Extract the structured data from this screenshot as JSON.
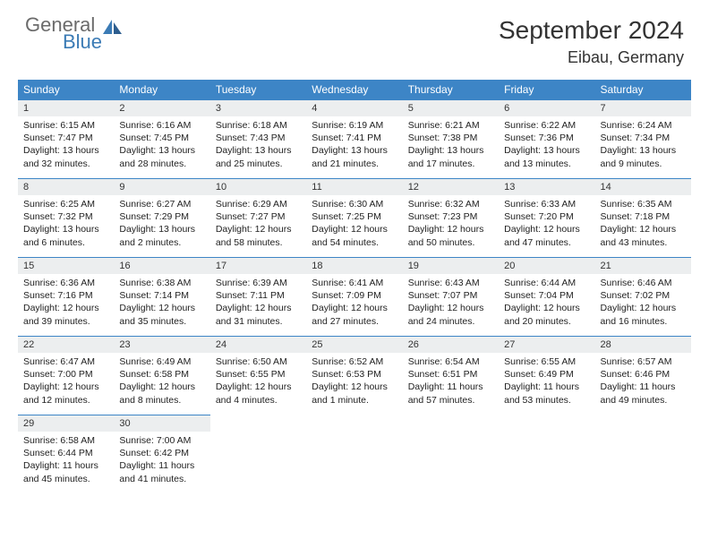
{
  "brand": {
    "part1": "General",
    "part2": "Blue"
  },
  "title": "September 2024",
  "location": "Eibau, Germany",
  "colors": {
    "header_bg": "#3d85c6",
    "daynum_bg": "#eceeef",
    "rule": "#3d85c6",
    "logo_gray": "#6b6b6b",
    "logo_blue": "#3b7bb5"
  },
  "weekdays": [
    "Sunday",
    "Monday",
    "Tuesday",
    "Wednesday",
    "Thursday",
    "Friday",
    "Saturday"
  ],
  "days": [
    {
      "n": 1,
      "sunrise": "6:15 AM",
      "sunset": "7:47 PM",
      "daylight": "13 hours and 32 minutes."
    },
    {
      "n": 2,
      "sunrise": "6:16 AM",
      "sunset": "7:45 PM",
      "daylight": "13 hours and 28 minutes."
    },
    {
      "n": 3,
      "sunrise": "6:18 AM",
      "sunset": "7:43 PM",
      "daylight": "13 hours and 25 minutes."
    },
    {
      "n": 4,
      "sunrise": "6:19 AM",
      "sunset": "7:41 PM",
      "daylight": "13 hours and 21 minutes."
    },
    {
      "n": 5,
      "sunrise": "6:21 AM",
      "sunset": "7:38 PM",
      "daylight": "13 hours and 17 minutes."
    },
    {
      "n": 6,
      "sunrise": "6:22 AM",
      "sunset": "7:36 PM",
      "daylight": "13 hours and 13 minutes."
    },
    {
      "n": 7,
      "sunrise": "6:24 AM",
      "sunset": "7:34 PM",
      "daylight": "13 hours and 9 minutes."
    },
    {
      "n": 8,
      "sunrise": "6:25 AM",
      "sunset": "7:32 PM",
      "daylight": "13 hours and 6 minutes."
    },
    {
      "n": 9,
      "sunrise": "6:27 AM",
      "sunset": "7:29 PM",
      "daylight": "13 hours and 2 minutes."
    },
    {
      "n": 10,
      "sunrise": "6:29 AM",
      "sunset": "7:27 PM",
      "daylight": "12 hours and 58 minutes."
    },
    {
      "n": 11,
      "sunrise": "6:30 AM",
      "sunset": "7:25 PM",
      "daylight": "12 hours and 54 minutes."
    },
    {
      "n": 12,
      "sunrise": "6:32 AM",
      "sunset": "7:23 PM",
      "daylight": "12 hours and 50 minutes."
    },
    {
      "n": 13,
      "sunrise": "6:33 AM",
      "sunset": "7:20 PM",
      "daylight": "12 hours and 47 minutes."
    },
    {
      "n": 14,
      "sunrise": "6:35 AM",
      "sunset": "7:18 PM",
      "daylight": "12 hours and 43 minutes."
    },
    {
      "n": 15,
      "sunrise": "6:36 AM",
      "sunset": "7:16 PM",
      "daylight": "12 hours and 39 minutes."
    },
    {
      "n": 16,
      "sunrise": "6:38 AM",
      "sunset": "7:14 PM",
      "daylight": "12 hours and 35 minutes."
    },
    {
      "n": 17,
      "sunrise": "6:39 AM",
      "sunset": "7:11 PM",
      "daylight": "12 hours and 31 minutes."
    },
    {
      "n": 18,
      "sunrise": "6:41 AM",
      "sunset": "7:09 PM",
      "daylight": "12 hours and 27 minutes."
    },
    {
      "n": 19,
      "sunrise": "6:43 AM",
      "sunset": "7:07 PM",
      "daylight": "12 hours and 24 minutes."
    },
    {
      "n": 20,
      "sunrise": "6:44 AM",
      "sunset": "7:04 PM",
      "daylight": "12 hours and 20 minutes."
    },
    {
      "n": 21,
      "sunrise": "6:46 AM",
      "sunset": "7:02 PM",
      "daylight": "12 hours and 16 minutes."
    },
    {
      "n": 22,
      "sunrise": "6:47 AM",
      "sunset": "7:00 PM",
      "daylight": "12 hours and 12 minutes."
    },
    {
      "n": 23,
      "sunrise": "6:49 AM",
      "sunset": "6:58 PM",
      "daylight": "12 hours and 8 minutes."
    },
    {
      "n": 24,
      "sunrise": "6:50 AM",
      "sunset": "6:55 PM",
      "daylight": "12 hours and 4 minutes."
    },
    {
      "n": 25,
      "sunrise": "6:52 AM",
      "sunset": "6:53 PM",
      "daylight": "12 hours and 1 minute."
    },
    {
      "n": 26,
      "sunrise": "6:54 AM",
      "sunset": "6:51 PM",
      "daylight": "11 hours and 57 minutes."
    },
    {
      "n": 27,
      "sunrise": "6:55 AM",
      "sunset": "6:49 PM",
      "daylight": "11 hours and 53 minutes."
    },
    {
      "n": 28,
      "sunrise": "6:57 AM",
      "sunset": "6:46 PM",
      "daylight": "11 hours and 49 minutes."
    },
    {
      "n": 29,
      "sunrise": "6:58 AM",
      "sunset": "6:44 PM",
      "daylight": "11 hours and 45 minutes."
    },
    {
      "n": 30,
      "sunrise": "7:00 AM",
      "sunset": "6:42 PM",
      "daylight": "11 hours and 41 minutes."
    }
  ],
  "labels": {
    "sunrise": "Sunrise:",
    "sunset": "Sunset:",
    "daylight": "Daylight:"
  },
  "layout": {
    "first_weekday_offset": 0,
    "total_cells": 35
  }
}
